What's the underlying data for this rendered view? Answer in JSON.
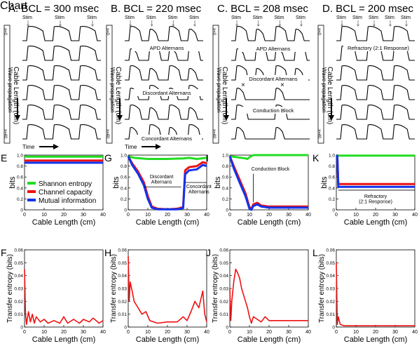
{
  "panels_top": [
    {
      "letter": "A.",
      "title": "BCL = 300 msec",
      "stim_label": "Stim",
      "stim_count": 3,
      "left_label": "Cable Length (cm)",
      "prop_label": "Wave propagation",
      "time_label": "Time",
      "notes": []
    },
    {
      "letter": "B.",
      "title": "BCL = 220 msec",
      "stim_label": "Stim",
      "stim_count": 4,
      "left_label": "Cable Length (cm)",
      "prop_label": "Wave propagation",
      "time_label": "Time",
      "notes": [
        "APD Alternans",
        "Discordant Alternans",
        "Concordant Alternans"
      ]
    },
    {
      "letter": "C.",
      "title": "BCL = 208 msec",
      "stim_label": "Stim",
      "stim_count": 4,
      "left_label": "Cable Length (cm)",
      "prop_label": "Wave propagation",
      "time_label": "",
      "notes": [
        "APD Alternans",
        "Discordant Alternans",
        "Conduction Block"
      ]
    },
    {
      "letter": "D.",
      "title": "BCL = 200 msec",
      "stim_label": "Stim",
      "stim_count": 5,
      "left_label": "Cable Length (cm)",
      "prop_label": "Wave propagation",
      "time_label": "",
      "notes": [
        "Refractory (2:1 Response)"
      ]
    }
  ],
  "scale_top": "x=0",
  "scale_bottom": "x=40",
  "chart_data": [
    {
      "type": "line",
      "letter": "E",
      "ylabel": "bits",
      "xlabel": "Cable Length (cm)",
      "xlim": [
        0,
        40
      ],
      "ylim": [
        0,
        1
      ],
      "xticks": [
        0,
        10,
        20,
        30,
        40
      ],
      "yticks": [
        "0",
        "0.2",
        "0.4",
        "0.6",
        "0.8",
        "1.0"
      ],
      "legend": [
        "Shannon entropy",
        "Channel capacity",
        "Mutual information"
      ],
      "series": [
        {
          "name": "Shannon entropy",
          "color": "#22dd22",
          "x": [
            0,
            40
          ],
          "y": [
            0.97,
            0.97
          ]
        },
        {
          "name": "Channel capacity",
          "color": "#ee1111",
          "x": [
            0,
            40
          ],
          "y": [
            0.9,
            0.9
          ]
        },
        {
          "name": "Mutual information",
          "color": "#1133ee",
          "x": [
            0,
            40
          ],
          "y": [
            0.86,
            0.86
          ]
        }
      ]
    },
    {
      "type": "line",
      "letter": "G",
      "ylabel": "bits",
      "xlabel": "Cable Length (cm)",
      "xlim": [
        0,
        40
      ],
      "ylim": [
        0,
        1
      ],
      "xticks": [
        0,
        10,
        20,
        30,
        40
      ],
      "yticks": [
        "0",
        "0.2",
        "0.4",
        "0.6",
        "0.8",
        "1.0"
      ],
      "annotations": [
        "Discordant\nAlternans",
        "Concordant\nAlternans"
      ],
      "series": [
        {
          "name": "Shannon entropy",
          "color": "#22dd22",
          "x": [
            0,
            3,
            10,
            20,
            28,
            31,
            35,
            40
          ],
          "y": [
            0.98,
            0.95,
            0.93,
            0.93,
            0.94,
            0.95,
            0.93,
            0.95
          ]
        },
        {
          "name": "Channel capacity",
          "color": "#ee1111",
          "x": [
            0,
            2,
            5,
            8,
            10,
            12,
            15,
            20,
            25,
            28,
            29,
            31,
            35,
            38,
            40
          ],
          "y": [
            0.98,
            0.85,
            0.7,
            0.5,
            0.25,
            0.06,
            0.02,
            0.01,
            0.02,
            0.05,
            0.72,
            0.78,
            0.8,
            0.87,
            0.85
          ]
        },
        {
          "name": "Mutual information",
          "color": "#1133ee",
          "x": [
            0,
            2,
            5,
            8,
            10,
            12,
            15,
            20,
            25,
            28,
            29,
            31,
            35,
            38,
            40
          ],
          "y": [
            0.98,
            0.82,
            0.66,
            0.45,
            0.2,
            0.04,
            0.01,
            0.01,
            0.01,
            0.03,
            0.65,
            0.72,
            0.74,
            0.82,
            0.8
          ]
        }
      ]
    },
    {
      "type": "line",
      "letter": "I",
      "ylabel": "bits",
      "xlabel": "Cable Length (cm)",
      "xlim": [
        0,
        40
      ],
      "ylim": [
        0,
        1
      ],
      "xticks": [
        0,
        10,
        20,
        30,
        40
      ],
      "yticks": [
        "0",
        "0.2",
        "0.4",
        "0.6",
        "0.8",
        "1.0"
      ],
      "annotations": [
        "Conduction Block"
      ],
      "series": [
        {
          "name": "Shannon entropy",
          "color": "#22dd22",
          "x": [
            0,
            8,
            9,
            10,
            12,
            40
          ],
          "y": [
            0.98,
            0.94,
            0.93,
            0.96,
            1.0,
            1.0
          ]
        },
        {
          "name": "Channel capacity",
          "color": "#ee1111",
          "x": [
            0,
            2,
            5,
            8,
            10,
            11,
            12,
            14,
            16,
            20,
            40
          ],
          "y": [
            0.98,
            0.8,
            0.55,
            0.3,
            0.05,
            0.02,
            0.1,
            0.13,
            0.08,
            0.06,
            0.06
          ]
        },
        {
          "name": "Mutual information",
          "color": "#1133ee",
          "x": [
            0,
            2,
            5,
            8,
            10,
            11,
            12,
            14,
            16,
            20,
            40
          ],
          "y": [
            0.98,
            0.76,
            0.5,
            0.25,
            0.02,
            0.0,
            0.07,
            0.1,
            0.06,
            0.04,
            0.04
          ]
        }
      ]
    },
    {
      "type": "line",
      "letter": "K",
      "ylabel": "bits",
      "xlabel": "Cable Length (cm)",
      "xlim": [
        0,
        40
      ],
      "ylim": [
        0,
        1
      ],
      "xticks": [
        0,
        10,
        20,
        30,
        40
      ],
      "yticks": [
        "0",
        "0.2",
        "0.4",
        "0.6",
        "0.8",
        "1.0"
      ],
      "annotations": [
        "Refractory\n(2:1 Response)"
      ],
      "series": [
        {
          "name": "Shannon entropy",
          "color": "#22dd22",
          "x": [
            0,
            40
          ],
          "y": [
            0.99,
            0.99
          ]
        },
        {
          "name": "Channel capacity",
          "color": "#ee1111",
          "x": [
            0,
            0.5,
            1,
            40
          ],
          "y": [
            0.99,
            0.99,
            0.47,
            0.47
          ]
        },
        {
          "name": "Mutual information",
          "color": "#1133ee",
          "x": [
            0,
            0.5,
            1,
            40
          ],
          "y": [
            0.99,
            0.99,
            0.42,
            0.42
          ]
        }
      ]
    },
    {
      "type": "line",
      "letter": "F",
      "ylabel": "Transfer entropy (bits)",
      "xlabel": "Cable Length (cm)",
      "xlim": [
        0,
        40
      ],
      "ylim": [
        0,
        0.06
      ],
      "xticks": [
        0,
        10,
        20,
        30,
        40
      ],
      "yticks": [
        "0",
        "0.01",
        "0.02",
        "0.03",
        "0.04",
        "0.05",
        "0.06"
      ],
      "series": [
        {
          "name": "Transfer entropy",
          "color": "#ee1111",
          "x": [
            0,
            0.5,
            1,
            2,
            3,
            4,
            5,
            6,
            8,
            10,
            12,
            15,
            18,
            20,
            22,
            25,
            28,
            30,
            33,
            35,
            38,
            40
          ],
          "y": [
            0.045,
            0.01,
            0.002,
            0.012,
            0.004,
            0.01,
            0.003,
            0.008,
            0.004,
            0.006,
            0.003,
            0.005,
            0.003,
            0.008,
            0.003,
            0.006,
            0.003,
            0.006,
            0.004,
            0.007,
            0.003,
            0.005
          ]
        }
      ]
    },
    {
      "type": "line",
      "letter": "H",
      "ylabel": "Transfer entropy (bits)",
      "xlabel": "Cable Length (cm)",
      "xlim": [
        0,
        40
      ],
      "ylim": [
        0,
        0.06
      ],
      "xticks": [
        0,
        10,
        20,
        30,
        40
      ],
      "yticks": [
        "0",
        "0.01",
        "0.02",
        "0.03",
        "0.04",
        "0.05",
        "0.06"
      ],
      "series": [
        {
          "name": "Transfer entropy",
          "color": "#ee1111",
          "x": [
            0,
            0.5,
            1,
            2,
            3,
            5,
            7,
            9,
            11,
            13,
            15,
            20,
            25,
            28,
            30,
            32,
            34,
            36,
            38,
            39,
            40
          ],
          "y": [
            0.055,
            0.02,
            0.035,
            0.028,
            0.02,
            0.015,
            0.01,
            0.012,
            0.005,
            0.004,
            0.003,
            0.004,
            0.004,
            0.008,
            0.005,
            0.012,
            0.02,
            0.015,
            0.028,
            0.01,
            0.004
          ]
        }
      ]
    },
    {
      "type": "line",
      "letter": "J",
      "ylabel": "Transfer entropy (bits)",
      "xlabel": "Cable Length (cm)",
      "xlim": [
        0,
        40
      ],
      "ylim": [
        0,
        0.06
      ],
      "xticks": [
        0,
        10,
        20,
        30,
        40
      ],
      "yticks": [
        "0",
        "0.01",
        "0.02",
        "0.03",
        "0.04",
        "0.05",
        "0.06"
      ],
      "series": [
        {
          "name": "Transfer entropy",
          "color": "#ee1111",
          "x": [
            0,
            0.5,
            1,
            2,
            3,
            4,
            5,
            6,
            7,
            8,
            9,
            10,
            11,
            12,
            14,
            16,
            18,
            20,
            40
          ],
          "y": [
            0.03,
            0.005,
            0.02,
            0.035,
            0.045,
            0.042,
            0.038,
            0.03,
            0.025,
            0.02,
            0.015,
            0.008,
            0.003,
            0.008,
            0.006,
            0.004,
            0.008,
            0.005,
            0.005
          ]
        }
      ]
    },
    {
      "type": "line",
      "letter": "L",
      "ylabel": "Transfer entropy (bits)",
      "xlabel": "Cable Length (cm)",
      "xlim": [
        0,
        40
      ],
      "ylim": [
        0,
        0.06
      ],
      "xticks": [
        0,
        10,
        20,
        30,
        40
      ],
      "yticks": [
        "0",
        "0.01",
        "0.02",
        "0.03",
        "0.04",
        "0.05",
        "0.06"
      ],
      "series": [
        {
          "name": "Transfer entropy",
          "color": "#ee1111",
          "x": [
            0,
            0.5,
            1,
            2,
            4,
            40
          ],
          "y": [
            0.05,
            0.002,
            0.008,
            0.002,
            0.001,
            0.001
          ]
        }
      ]
    }
  ]
}
